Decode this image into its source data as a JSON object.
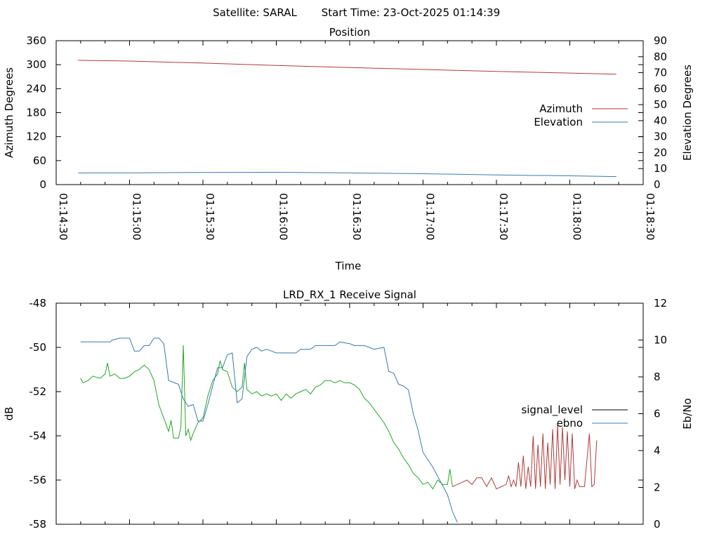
{
  "header": {
    "satellite": "Satellite: SARAL",
    "start_time": "Start Time: 23-Oct-2025 01:14:39"
  },
  "chart_data": [
    {
      "type": "line",
      "title": "Position",
      "xlabel": "Time",
      "ylabel": "Azimuth Degrees",
      "y2label": "Elevation Degrees",
      "xlim": [
        "01:14:30",
        "01:18:30"
      ],
      "x_ticks": [
        "01:14:30",
        "01:15:00",
        "01:15:30",
        "01:16:00",
        "01:16:30",
        "01:17:00",
        "01:17:30",
        "01:18:00",
        "01:18:30"
      ],
      "ylim": [
        0,
        360
      ],
      "y_ticks": [
        "0",
        "60",
        "120",
        "180",
        "240",
        "300",
        "360"
      ],
      "y2lim": [
        0,
        90
      ],
      "y2_ticks": [
        "0",
        "10",
        "20",
        "30",
        "40",
        "50",
        "60",
        "70",
        "80",
        "90"
      ],
      "legend": "right",
      "series": [
        {
          "name": "Azimuth",
          "axis": "y",
          "color": "#b03a3a",
          "points": [
            [
              "01:14:39",
              311
            ],
            [
              "01:15:00",
              309
            ],
            [
              "01:15:30",
              304
            ],
            [
              "01:16:00",
              298
            ],
            [
              "01:16:30",
              293
            ],
            [
              "01:17:00",
              288
            ],
            [
              "01:17:30",
              283
            ],
            [
              "01:18:00",
              279
            ],
            [
              "01:18:19",
              276
            ]
          ]
        },
        {
          "name": "Elevation",
          "axis": "y2",
          "color": "#3a78b0",
          "points": [
            [
              "01:14:39",
              7.3
            ],
            [
              "01:15:00",
              7.3
            ],
            [
              "01:15:30",
              7.6
            ],
            [
              "01:16:00",
              7.7
            ],
            [
              "01:16:30",
              7.3
            ],
            [
              "01:17:00",
              6.8
            ],
            [
              "01:17:30",
              6.0
            ],
            [
              "01:18:00",
              5.5
            ],
            [
              "01:18:19",
              5.0
            ]
          ]
        }
      ]
    },
    {
      "type": "line",
      "title": "LRD_RX_1 Receive Signal",
      "ylabel": "dB",
      "y2label": "Eb/No",
      "xlim": [
        "01:14:30",
        "01:18:30"
      ],
      "x_tick_labels_shown": false,
      "ylim": [
        -58,
        -48
      ],
      "y_ticks": [
        "-58",
        "-56",
        "-54",
        "-52",
        "-50",
        "-48"
      ],
      "y2lim": [
        0,
        12
      ],
      "y2_ticks": [
        "0",
        "2",
        "4",
        "6",
        "8",
        "10",
        "12"
      ],
      "legend": "right",
      "series": [
        {
          "name": "signal_level",
          "axis": "y",
          "color": "#22a822",
          "color_after_01:17:12": "#b03a3a",
          "points": [
            [
              "01:14:40",
              -51.4
            ],
            [
              "01:14:41",
              -51.6
            ],
            [
              "01:14:43",
              -51.5
            ],
            [
              "01:14:45",
              -51.3
            ],
            [
              "01:14:48",
              -51.4
            ],
            [
              "01:14:50",
              -51.2
            ],
            [
              "01:14:51",
              -50.7
            ],
            [
              "01:14:52",
              -51.3
            ],
            [
              "01:14:54",
              -51.2
            ],
            [
              "01:14:56",
              -51.4
            ],
            [
              "01:14:58",
              -51.4
            ],
            [
              "01:15:00",
              -51.3
            ],
            [
              "01:15:02",
              -51.1
            ],
            [
              "01:15:04",
              -51.0
            ],
            [
              "01:15:06",
              -50.8
            ],
            [
              "01:15:08",
              -51.0
            ],
            [
              "01:15:10",
              -51.5
            ],
            [
              "01:15:12",
              -52.6
            ],
            [
              "01:15:14",
              -53.2
            ],
            [
              "01:15:16",
              -53.8
            ],
            [
              "01:15:17",
              -53.3
            ],
            [
              "01:15:18",
              -54.1
            ],
            [
              "01:15:20",
              -54.1
            ],
            [
              "01:15:21",
              -53.6
            ],
            [
              "01:15:22",
              -49.9
            ],
            [
              "01:15:23",
              -54.0
            ],
            [
              "01:15:24",
              -53.7
            ],
            [
              "01:15:25",
              -54.2
            ],
            [
              "01:15:26",
              -53.9
            ],
            [
              "01:15:28",
              -53.4
            ],
            [
              "01:15:30",
              -53.2
            ],
            [
              "01:15:32",
              -52.2
            ],
            [
              "01:15:34",
              -51.5
            ],
            [
              "01:15:36",
              -51.2
            ],
            [
              "01:15:37",
              -50.6
            ],
            [
              "01:15:38",
              -51.0
            ],
            [
              "01:15:40",
              -51.1
            ],
            [
              "01:15:42",
              -51.8
            ],
            [
              "01:15:44",
              -52.0
            ],
            [
              "01:15:46",
              -51.8
            ],
            [
              "01:15:47",
              -50.7
            ],
            [
              "01:15:48",
              -51.9
            ],
            [
              "01:15:50",
              -52.1
            ],
            [
              "01:15:52",
              -52.0
            ],
            [
              "01:15:54",
              -52.2
            ],
            [
              "01:15:56",
              -52.1
            ],
            [
              "01:15:58",
              -52.2
            ],
            [
              "01:16:00",
              -52.1
            ],
            [
              "01:16:02",
              -52.4
            ],
            [
              "01:16:04",
              -52.1
            ],
            [
              "01:16:06",
              -52.3
            ],
            [
              "01:16:08",
              -52.1
            ],
            [
              "01:16:10",
              -52.0
            ],
            [
              "01:16:12",
              -51.9
            ],
            [
              "01:16:14",
              -52.1
            ],
            [
              "01:16:16",
              -51.8
            ],
            [
              "01:16:18",
              -51.7
            ],
            [
              "01:16:20",
              -51.5
            ],
            [
              "01:16:22",
              -51.5
            ],
            [
              "01:16:24",
              -51.6
            ],
            [
              "01:16:26",
              -51.5
            ],
            [
              "01:16:28",
              -51.6
            ],
            [
              "01:16:30",
              -51.6
            ],
            [
              "01:16:32",
              -51.7
            ],
            [
              "01:16:34",
              -51.9
            ],
            [
              "01:16:36",
              -52.3
            ],
            [
              "01:16:38",
              -52.5
            ],
            [
              "01:16:40",
              -52.8
            ],
            [
              "01:16:42",
              -53.1
            ],
            [
              "01:16:44",
              -53.4
            ],
            [
              "01:16:46",
              -53.8
            ],
            [
              "01:16:48",
              -54.3
            ],
            [
              "01:16:50",
              -54.6
            ],
            [
              "01:16:52",
              -55.0
            ],
            [
              "01:16:54",
              -55.3
            ],
            [
              "01:16:56",
              -55.7
            ],
            [
              "01:16:58",
              -55.9
            ],
            [
              "01:17:00",
              -56.2
            ],
            [
              "01:17:02",
              -56.1
            ],
            [
              "01:17:04",
              -56.4
            ],
            [
              "01:17:06",
              -56.0
            ],
            [
              "01:17:08",
              -56.2
            ],
            [
              "01:17:10",
              -56.2
            ],
            [
              "01:17:11",
              -55.5
            ],
            [
              "01:17:12",
              -56.3
            ],
            [
              "01:17:14",
              -56.2
            ],
            [
              "01:17:16",
              -56.1
            ],
            [
              "01:17:18",
              -56.0
            ],
            [
              "01:17:20",
              -56.2
            ],
            [
              "01:17:22",
              -55.9
            ],
            [
              "01:17:24",
              -55.9
            ],
            [
              "01:17:26",
              -56.3
            ],
            [
              "01:17:28",
              -55.9
            ],
            [
              "01:17:30",
              -56.4
            ],
            [
              "01:17:32",
              -56.3
            ],
            [
              "01:17:34",
              -56.2
            ],
            [
              "01:17:35",
              -55.8
            ],
            [
              "01:17:36",
              -56.3
            ],
            [
              "01:17:37",
              -56.0
            ],
            [
              "01:17:38",
              -56.3
            ],
            [
              "01:17:39",
              -55.2
            ],
            [
              "01:17:40",
              -56.3
            ],
            [
              "01:17:41",
              -54.9
            ],
            [
              "01:17:42",
              -56.4
            ],
            [
              "01:17:43",
              -55.4
            ],
            [
              "01:17:44",
              -56.3
            ],
            [
              "01:17:45",
              -54.0
            ],
            [
              "01:17:46",
              -56.4
            ],
            [
              "01:17:47",
              -54.4
            ],
            [
              "01:17:48",
              -56.3
            ],
            [
              "01:17:49",
              -53.9
            ],
            [
              "01:17:50",
              -56.4
            ],
            [
              "01:17:51",
              -54.3
            ],
            [
              "01:17:52",
              -56.2
            ],
            [
              "01:17:53",
              -53.7
            ],
            [
              "01:17:54",
              -56.4
            ],
            [
              "01:17:55",
              -53.5
            ],
            [
              "01:17:56",
              -56.2
            ],
            [
              "01:17:57",
              -53.6
            ],
            [
              "01:17:58",
              -56.0
            ],
            [
              "01:17:59",
              -53.8
            ],
            [
              "01:18:00",
              -56.3
            ],
            [
              "01:18:01",
              -53.9
            ],
            [
              "01:18:02",
              -56.4
            ],
            [
              "01:18:03",
              -56.0
            ],
            [
              "01:18:04",
              -56.3
            ],
            [
              "01:18:06",
              -56.3
            ],
            [
              "01:18:08",
              -53.9
            ],
            [
              "01:18:09",
              -56.3
            ],
            [
              "01:18:10",
              -56.2
            ],
            [
              "01:18:11",
              -54.2
            ]
          ]
        },
        {
          "name": "ebno",
          "axis": "y2",
          "color": "#3a78b0",
          "points": [
            [
              "01:14:40",
              9.9
            ],
            [
              "01:14:52",
              9.9
            ],
            [
              "01:14:53",
              10.0
            ],
            [
              "01:14:56",
              10.1
            ],
            [
              "01:15:00",
              10.1
            ],
            [
              "01:15:02",
              9.4
            ],
            [
              "01:15:04",
              9.4
            ],
            [
              "01:15:06",
              9.7
            ],
            [
              "01:15:08",
              9.7
            ],
            [
              "01:15:10",
              10.1
            ],
            [
              "01:15:12",
              10.1
            ],
            [
              "01:15:14",
              9.8
            ],
            [
              "01:15:16",
              7.8
            ],
            [
              "01:15:18",
              7.7
            ],
            [
              "01:15:20",
              7.6
            ],
            [
              "01:15:22",
              6.8
            ],
            [
              "01:15:24",
              6.4
            ],
            [
              "01:15:26",
              6.5
            ],
            [
              "01:15:28",
              5.6
            ],
            [
              "01:15:30",
              5.6
            ],
            [
              "01:15:32",
              6.5
            ],
            [
              "01:15:34",
              7.5
            ],
            [
              "01:15:36",
              8.5
            ],
            [
              "01:15:38",
              8.5
            ],
            [
              "01:15:40",
              9.2
            ],
            [
              "01:15:42",
              9.3
            ],
            [
              "01:15:44",
              6.6
            ],
            [
              "01:15:46",
              6.8
            ],
            [
              "01:15:48",
              9.1
            ],
            [
              "01:15:50",
              9.5
            ],
            [
              "01:15:52",
              9.6
            ],
            [
              "01:15:54",
              9.4
            ],
            [
              "01:15:56",
              9.5
            ],
            [
              "01:16:00",
              9.3
            ],
            [
              "01:16:04",
              9.3
            ],
            [
              "01:16:08",
              9.3
            ],
            [
              "01:16:10",
              9.5
            ],
            [
              "01:16:14",
              9.5
            ],
            [
              "01:16:16",
              9.7
            ],
            [
              "01:16:24",
              9.7
            ],
            [
              "01:16:26",
              9.9
            ],
            [
              "01:16:30",
              9.8
            ],
            [
              "01:16:32",
              9.7
            ],
            [
              "01:16:36",
              9.7
            ],
            [
              "01:16:40",
              9.5
            ],
            [
              "01:16:44",
              9.6
            ],
            [
              "01:16:46",
              8.3
            ],
            [
              "01:16:48",
              8.2
            ],
            [
              "01:16:50",
              7.6
            ],
            [
              "01:16:52",
              7.5
            ],
            [
              "01:16:54",
              7.3
            ],
            [
              "01:16:56",
              6.0
            ],
            [
              "01:16:58",
              5.1
            ],
            [
              "01:17:00",
              3.9
            ],
            [
              "01:17:02",
              3.5
            ],
            [
              "01:17:04",
              3.1
            ],
            [
              "01:17:06",
              2.6
            ],
            [
              "01:17:08",
              2.1
            ],
            [
              "01:17:10",
              1.6
            ],
            [
              "01:17:12",
              0.7
            ],
            [
              "01:17:14",
              0.1
            ]
          ]
        }
      ]
    }
  ]
}
